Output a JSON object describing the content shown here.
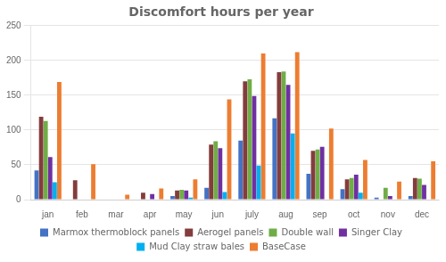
{
  "chart_data": {
    "type": "bar",
    "title": "Discomfort hours per year",
    "categories": [
      "jan",
      "feb",
      "mar",
      "apr",
      "may",
      "jun",
      "july",
      "aug",
      "sep",
      "oct",
      "nov",
      "dec"
    ],
    "series": [
      {
        "name": "Marmox thermoblock panels",
        "color": "#4472C4",
        "values": [
          42,
          0,
          0,
          0,
          5,
          17,
          85,
          117,
          37,
          15,
          3,
          5
        ]
      },
      {
        "name": "Aerogel panels",
        "color": "#843C3C",
        "values": [
          119,
          28,
          0,
          10,
          13,
          79,
          170,
          183,
          70,
          29,
          0,
          31
        ]
      },
      {
        "name": "Double wall",
        "color": "#70AD47",
        "values": [
          113,
          0,
          0,
          0,
          14,
          84,
          173,
          184,
          72,
          31,
          17,
          30
        ]
      },
      {
        "name": "Singer Clay",
        "color": "#7030A0",
        "values": [
          61,
          0,
          0,
          8,
          13,
          74,
          149,
          165,
          76,
          36,
          5,
          21
        ]
      },
      {
        "name": "Mud Clay straw bales",
        "color": "#00B0F0",
        "values": [
          25,
          0,
          0,
          0,
          3,
          11,
          49,
          95,
          0,
          10,
          0,
          0
        ]
      },
      {
        "name": "BaseCase",
        "color": "#ED7D31",
        "values": [
          169,
          51,
          7,
          16,
          29,
          144,
          210,
          212,
          102,
          57,
          26,
          55
        ]
      }
    ],
    "ylim": [
      0,
      250
    ],
    "yticks": [
      0,
      50,
      100,
      150,
      200,
      250
    ],
    "grid": true,
    "legend": "bottom"
  }
}
